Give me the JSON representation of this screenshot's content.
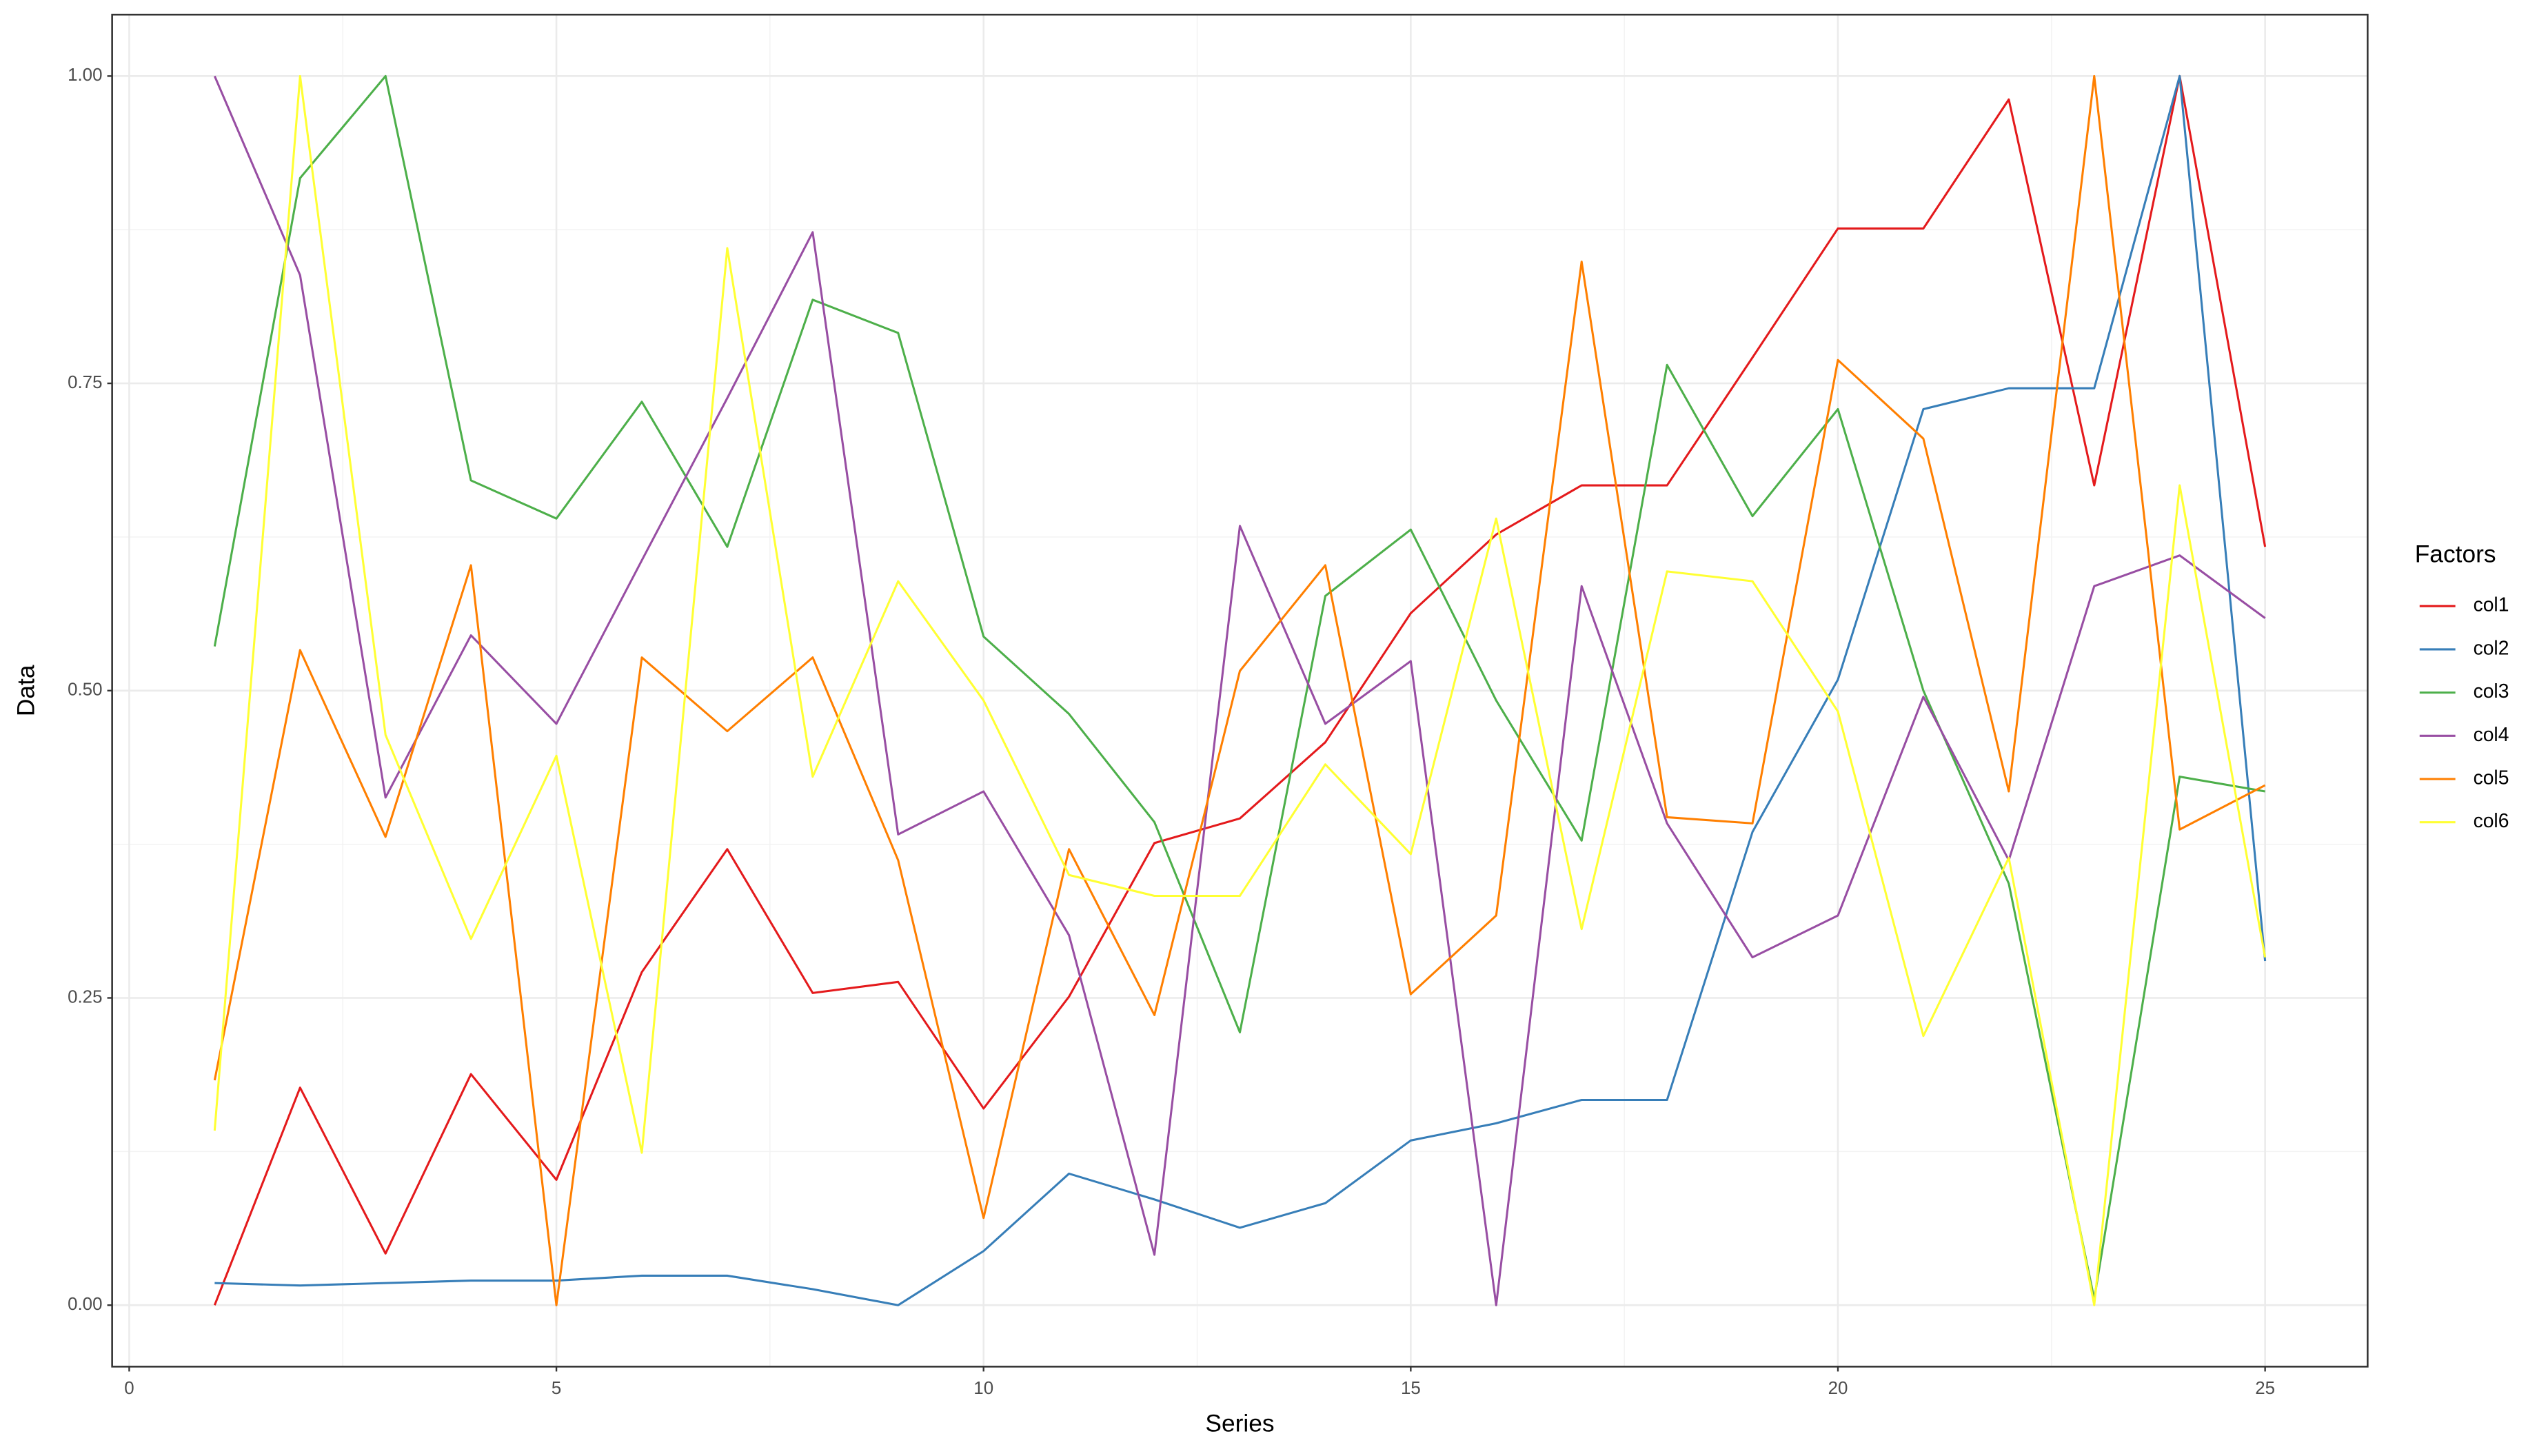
{
  "chart_data": {
    "type": "line",
    "x_label": "Series",
    "y_label": "Data",
    "legend_title": "Factors",
    "x": [
      1,
      2,
      3,
      4,
      5,
      6,
      7,
      8,
      9,
      10,
      11,
      12,
      13,
      14,
      15,
      16,
      17,
      18,
      19,
      20,
      21,
      22,
      23,
      24,
      25
    ],
    "series": [
      {
        "name": "col1",
        "color": "#e41a1c",
        "values": [
          0.0,
          0.177,
          0.042,
          0.188,
          0.102,
          0.271,
          0.371,
          0.254,
          0.263,
          0.16,
          0.251,
          0.376,
          0.396,
          0.458,
          0.563,
          0.627,
          0.667,
          0.667,
          0.771,
          0.876,
          0.876,
          0.981,
          0.667,
          1.0,
          0.617
        ]
      },
      {
        "name": "col2",
        "color": "#377eb8",
        "values": [
          0.018,
          0.016,
          0.018,
          0.02,
          0.02,
          0.024,
          0.024,
          0.013,
          0.0,
          0.044,
          0.107,
          0.086,
          0.063,
          0.083,
          0.134,
          0.148,
          0.167,
          0.167,
          0.385,
          0.509,
          0.729,
          0.746,
          0.746,
          1.0,
          0.28
        ]
      },
      {
        "name": "col3",
        "color": "#4daf4a",
        "values": [
          0.536,
          0.917,
          1.0,
          0.671,
          0.64,
          0.735,
          0.617,
          0.818,
          0.791,
          0.544,
          0.481,
          0.393,
          0.222,
          0.577,
          0.631,
          0.492,
          0.378,
          0.765,
          0.642,
          0.729,
          0.5,
          0.343,
          0.005,
          0.43,
          0.418
        ]
      },
      {
        "name": "col4",
        "color": "#984ea3",
        "values": [
          1.0,
          0.838,
          0.413,
          0.545,
          0.473,
          0.606,
          0.738,
          0.873,
          0.383,
          0.418,
          0.301,
          0.041,
          0.634,
          0.473,
          0.524,
          0.0,
          0.585,
          0.392,
          0.283,
          0.317,
          0.495,
          0.362,
          0.585,
          0.61,
          0.559
        ]
      },
      {
        "name": "col5",
        "color": "#ff7f00",
        "values": [
          0.183,
          0.533,
          0.381,
          0.602,
          0.0,
          0.527,
          0.467,
          0.527,
          0.362,
          0.071,
          0.371,
          0.236,
          0.516,
          0.602,
          0.253,
          0.317,
          0.849,
          0.397,
          0.392,
          0.769,
          0.705,
          0.418,
          1.0,
          0.387,
          0.423
        ]
      },
      {
        "name": "col6",
        "color": "#ffff33",
        "values": [
          0.142,
          1.0,
          0.464,
          0.298,
          0.447,
          0.124,
          0.86,
          0.43,
          0.589,
          0.492,
          0.35,
          0.333,
          0.333,
          0.44,
          0.367,
          0.64,
          0.306,
          0.597,
          0.589,
          0.483,
          0.219,
          0.364,
          0.0,
          0.667,
          0.283
        ]
      }
    ],
    "xlim": [
      -0.2,
      26.2
    ],
    "ylim": [
      -0.05,
      1.05
    ],
    "xticks": [
      0,
      5,
      10,
      15,
      20,
      25
    ],
    "yticks": [
      {
        "value": 0,
        "label": "0.00"
      },
      {
        "value": 0.25,
        "label": "0.25"
      },
      {
        "value": 0.5,
        "label": "0.50"
      },
      {
        "value": 0.75,
        "label": "0.75"
      },
      {
        "value": 1,
        "label": "1.00"
      }
    ],
    "grid": true,
    "legend_position": "right"
  }
}
